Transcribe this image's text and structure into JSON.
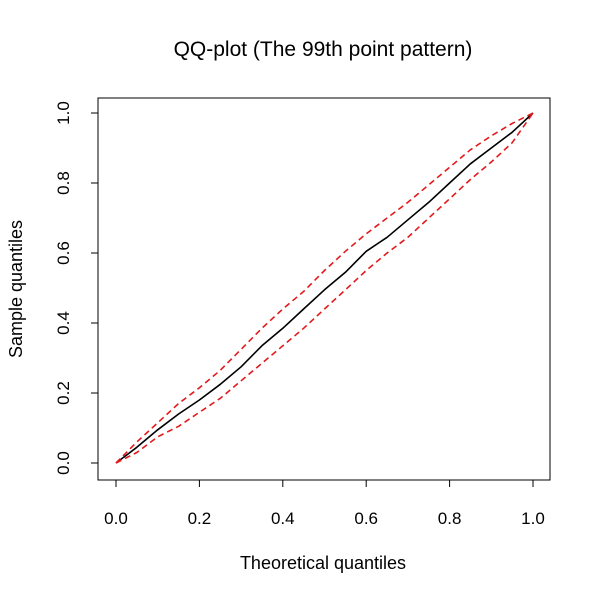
{
  "chart_data": {
    "type": "line",
    "title": "QQ-plot (The 99th point pattern)",
    "xlabel": "Theoretical quantiles",
    "ylabel": "Sample quantiles",
    "xlim": [
      0,
      1
    ],
    "ylim": [
      0,
      1
    ],
    "x_ticks": [
      "0.0",
      "0.2",
      "0.4",
      "0.6",
      "0.8",
      "1.0"
    ],
    "y_ticks": [
      "0.0",
      "0.2",
      "0.4",
      "0.6",
      "0.8",
      "1.0"
    ],
    "grid": false,
    "legend": "none",
    "series": [
      {
        "line_style": "solid",
        "color": "#000000",
        "x": [
          0.0,
          0.05,
          0.1,
          0.15,
          0.2,
          0.25,
          0.3,
          0.35,
          0.4,
          0.45,
          0.5,
          0.55,
          0.6,
          0.65,
          0.7,
          0.75,
          0.8,
          0.85,
          0.9,
          0.95,
          1.0
        ],
        "y": [
          0.0,
          0.045,
          0.095,
          0.14,
          0.18,
          0.225,
          0.275,
          0.335,
          0.385,
          0.44,
          0.495,
          0.545,
          0.605,
          0.645,
          0.695,
          0.745,
          0.8,
          0.855,
          0.9,
          0.945,
          1.0
        ]
      },
      {
        "line_style": "dashed",
        "color": "#e31a1c",
        "x": [
          0.0,
          0.05,
          0.1,
          0.15,
          0.2,
          0.25,
          0.3,
          0.35,
          0.4,
          0.45,
          0.5,
          0.55,
          0.6,
          0.65,
          0.7,
          0.75,
          0.8,
          0.85,
          0.9,
          0.95,
          1.0
        ],
        "y": [
          0.0,
          0.06,
          0.115,
          0.17,
          0.215,
          0.265,
          0.325,
          0.385,
          0.44,
          0.49,
          0.55,
          0.605,
          0.655,
          0.7,
          0.745,
          0.795,
          0.845,
          0.895,
          0.935,
          0.97,
          1.0
        ]
      },
      {
        "line_style": "dashed",
        "color": "#e31a1c",
        "x": [
          0.0,
          0.05,
          0.1,
          0.15,
          0.2,
          0.25,
          0.3,
          0.35,
          0.4,
          0.45,
          0.5,
          0.55,
          0.6,
          0.65,
          0.7,
          0.75,
          0.8,
          0.85,
          0.9,
          0.95,
          1.0
        ],
        "y": [
          0.0,
          0.03,
          0.075,
          0.105,
          0.145,
          0.185,
          0.235,
          0.285,
          0.335,
          0.385,
          0.44,
          0.495,
          0.55,
          0.6,
          0.645,
          0.7,
          0.755,
          0.81,
          0.86,
          0.915,
          1.0
        ]
      }
    ]
  }
}
